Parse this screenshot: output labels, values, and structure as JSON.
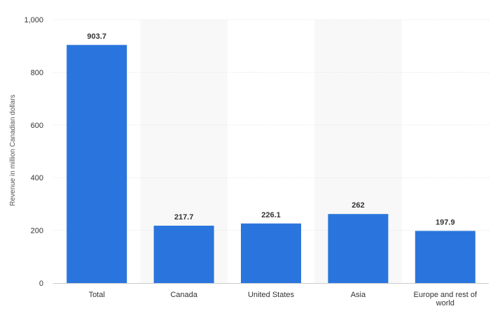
{
  "chart_data": {
    "type": "bar",
    "categories": [
      "Total",
      "Canada",
      "United States",
      "Asia",
      "Europe and rest of world"
    ],
    "values": [
      903.7,
      217.7,
      226.1,
      262,
      197.9
    ],
    "value_labels": [
      "903.7",
      "217.7",
      "226.1",
      "262",
      "197.9"
    ],
    "ylabel": "Revenue in million Canadian dollars",
    "xlabel": "",
    "ylim": [
      0,
      1000
    ],
    "yticks": [
      0,
      200,
      400,
      600,
      800,
      1000
    ],
    "ytick_labels": [
      "0",
      "200",
      "400",
      "600",
      "800",
      "1,000"
    ],
    "grid": true,
    "bar_color": "#2a75dd",
    "band_color": "#f8f8f8",
    "grid_color": "#e0e0e0"
  }
}
